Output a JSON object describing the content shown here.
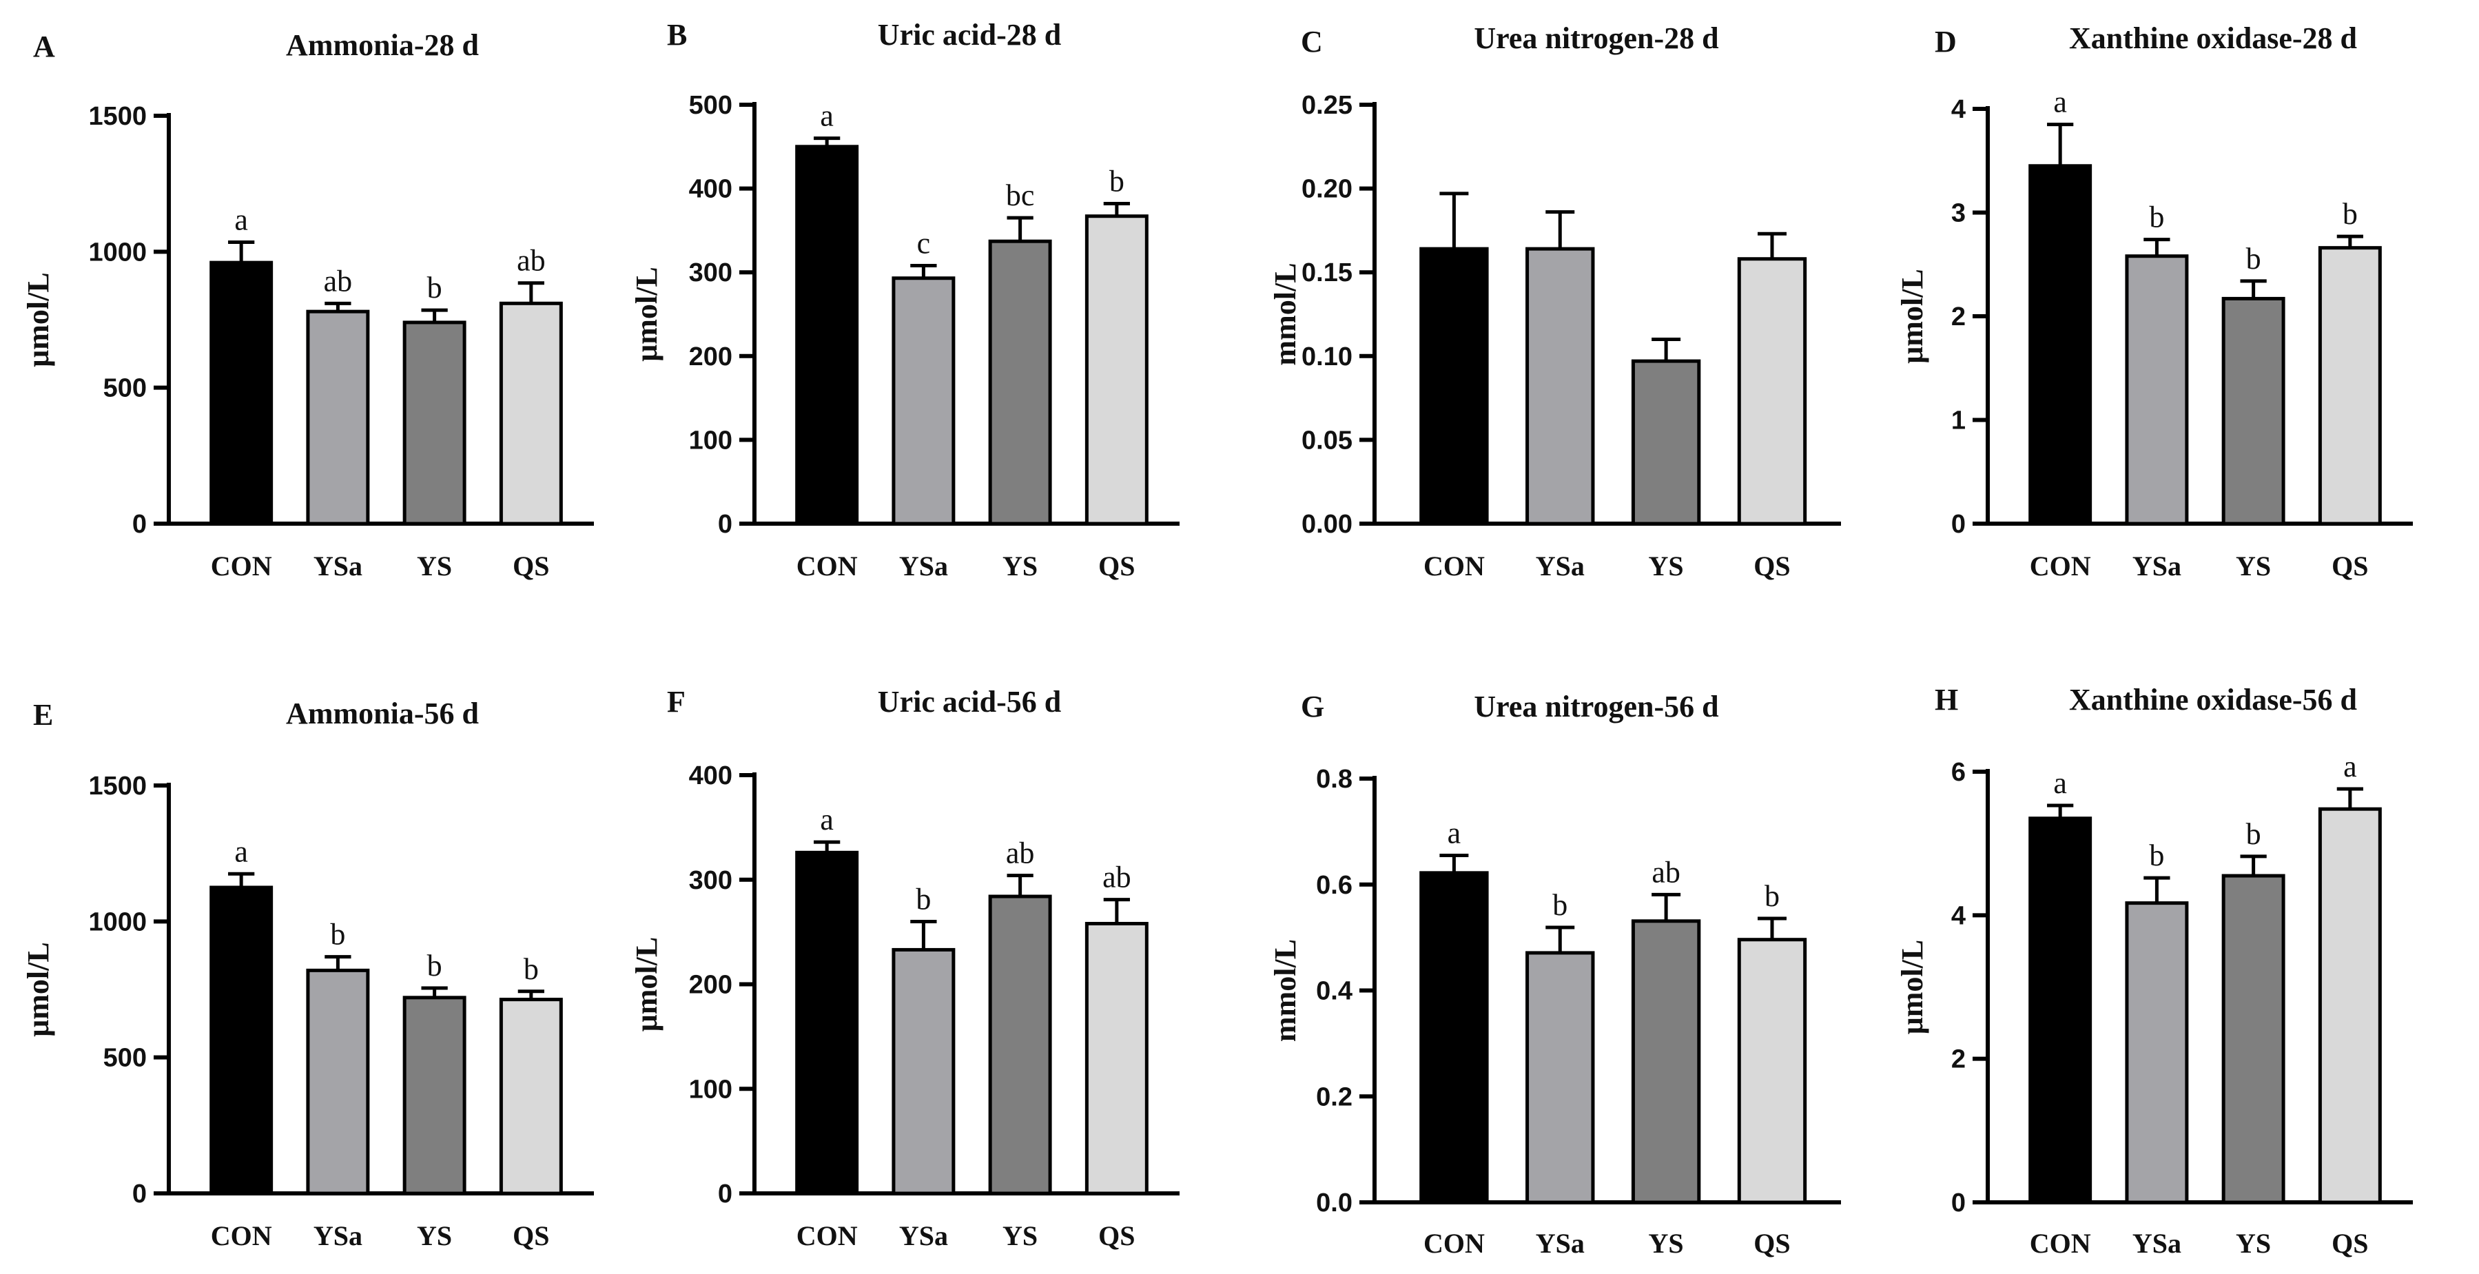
{
  "chart_data": [
    {
      "panel": "A",
      "type": "bar",
      "title": "Ammonia-28 d",
      "ylabel": "μmol/L",
      "ylim": [
        0,
        1500
      ],
      "yticks": [
        0,
        500,
        1000,
        1500
      ],
      "ytick_labels": [
        "0",
        "500",
        "1000",
        "1500"
      ],
      "categories": [
        "CON",
        "YSa",
        "YS",
        "QS"
      ],
      "values": [
        960,
        780,
        740,
        810
      ],
      "errors": [
        75,
        30,
        45,
        75
      ],
      "labels": [
        "a",
        "ab",
        "b",
        "ab"
      ],
      "colors": [
        "#000000",
        "#a4a4a8",
        "#7f7f7f",
        "#d9d9d9"
      ]
    },
    {
      "panel": "B",
      "type": "bar",
      "title": "Uric acid-28 d",
      "ylabel": "μmol/L",
      "ylim": [
        0,
        500
      ],
      "yticks": [
        0,
        100,
        200,
        300,
        400,
        500
      ],
      "ytick_labels": [
        "0",
        "100",
        "200",
        "300",
        "400",
        "500"
      ],
      "categories": [
        "CON",
        "YSa",
        "YS",
        "QS"
      ],
      "values": [
        450,
        293,
        337,
        367
      ],
      "errors": [
        10,
        15,
        28,
        15
      ],
      "labels": [
        "a",
        "c",
        "bc",
        "b"
      ],
      "colors": [
        "#000000",
        "#a4a4a8",
        "#7f7f7f",
        "#d9d9d9"
      ]
    },
    {
      "panel": "C",
      "type": "bar",
      "title": "Urea nitrogen-28 d",
      "ylabel": "mmol/L",
      "ylim": [
        0,
        0.25
      ],
      "yticks": [
        0,
        0.05,
        0.1,
        0.15,
        0.2,
        0.25
      ],
      "ytick_labels": [
        "0.00",
        "0.05",
        "0.10",
        "0.15",
        "0.20",
        "0.25"
      ],
      "categories": [
        "CON",
        "YSa",
        "YS",
        "QS"
      ],
      "values": [
        0.164,
        0.164,
        0.097,
        0.158
      ],
      "errors": [
        0.033,
        0.022,
        0.013,
        0.015
      ],
      "labels": [
        "",
        "",
        "",
        ""
      ],
      "colors": [
        "#000000",
        "#a4a4a8",
        "#7f7f7f",
        "#d9d9d9"
      ]
    },
    {
      "panel": "D",
      "type": "bar",
      "title": "Xanthine oxidase-28 d",
      "ylabel": "μmol/L",
      "ylim": [
        0,
        4
      ],
      "yticks": [
        0,
        1,
        2,
        3,
        4
      ],
      "ytick_labels": [
        "0",
        "1",
        "2",
        "3",
        "4"
      ],
      "categories": [
        "CON",
        "YSa",
        "YS",
        "QS"
      ],
      "values": [
        3.45,
        2.58,
        2.17,
        2.66
      ],
      "errors": [
        0.4,
        0.16,
        0.17,
        0.11
      ],
      "labels": [
        "a",
        "b",
        "b",
        "b"
      ],
      "colors": [
        "#000000",
        "#a4a4a8",
        "#7f7f7f",
        "#d9d9d9"
      ]
    },
    {
      "panel": "E",
      "type": "bar",
      "title": "Ammonia-56 d",
      "ylabel": "μmol/L",
      "ylim": [
        0,
        1500
      ],
      "yticks": [
        0,
        500,
        1000,
        1500
      ],
      "ytick_labels": [
        "0",
        "500",
        "1000",
        "1500"
      ],
      "categories": [
        "CON",
        "YSa",
        "YS",
        "QS"
      ],
      "values": [
        1125,
        820,
        720,
        713
      ],
      "errors": [
        50,
        50,
        35,
        30
      ],
      "labels": [
        "a",
        "b",
        "b",
        "b"
      ],
      "colors": [
        "#000000",
        "#a4a4a8",
        "#7f7f7f",
        "#d9d9d9"
      ]
    },
    {
      "panel": "F",
      "type": "bar",
      "title": "Uric acid-56 d",
      "ylabel": "μmol/L",
      "ylim": [
        0,
        400
      ],
      "yticks": [
        0,
        100,
        200,
        300,
        400
      ],
      "ytick_labels": [
        "0",
        "100",
        "200",
        "300",
        "400"
      ],
      "categories": [
        "CON",
        "YSa",
        "YS",
        "QS"
      ],
      "values": [
        326,
        233,
        284,
        258
      ],
      "errors": [
        10,
        27,
        20,
        23
      ],
      "labels": [
        "a",
        "b",
        "ab",
        "ab"
      ],
      "colors": [
        "#000000",
        "#a4a4a8",
        "#7f7f7f",
        "#d9d9d9"
      ]
    },
    {
      "panel": "G",
      "type": "bar",
      "title": "Urea nitrogen-56 d",
      "ylabel": "mmol/L",
      "ylim": [
        0,
        0.8
      ],
      "yticks": [
        0,
        0.2,
        0.4,
        0.6,
        0.8
      ],
      "ytick_labels": [
        "0.0",
        "0.2",
        "0.4",
        "0.6",
        "0.8"
      ],
      "categories": [
        "CON",
        "YSa",
        "YS",
        "QS"
      ],
      "values": [
        0.622,
        0.471,
        0.531,
        0.496
      ],
      "errors": [
        0.033,
        0.048,
        0.05,
        0.04
      ],
      "labels": [
        "a",
        "b",
        "ab",
        "b"
      ],
      "colors": [
        "#000000",
        "#a4a4a8",
        "#7f7f7f",
        "#d9d9d9"
      ]
    },
    {
      "panel": "H",
      "type": "bar",
      "title": "Xanthine oxidase-56 d",
      "ylabel": "μmol/L",
      "ylim": [
        0,
        6
      ],
      "yticks": [
        0,
        2,
        4,
        6
      ],
      "ytick_labels": [
        "0",
        "2",
        "4",
        "6"
      ],
      "categories": [
        "CON",
        "YSa",
        "YS",
        "QS"
      ],
      "values": [
        5.35,
        4.17,
        4.55,
        5.48
      ],
      "errors": [
        0.18,
        0.35,
        0.27,
        0.28
      ],
      "labels": [
        "a",
        "b",
        "b",
        "a"
      ],
      "colors": [
        "#000000",
        "#a4a4a8",
        "#7f7f7f",
        "#d9d9d9"
      ]
    }
  ]
}
